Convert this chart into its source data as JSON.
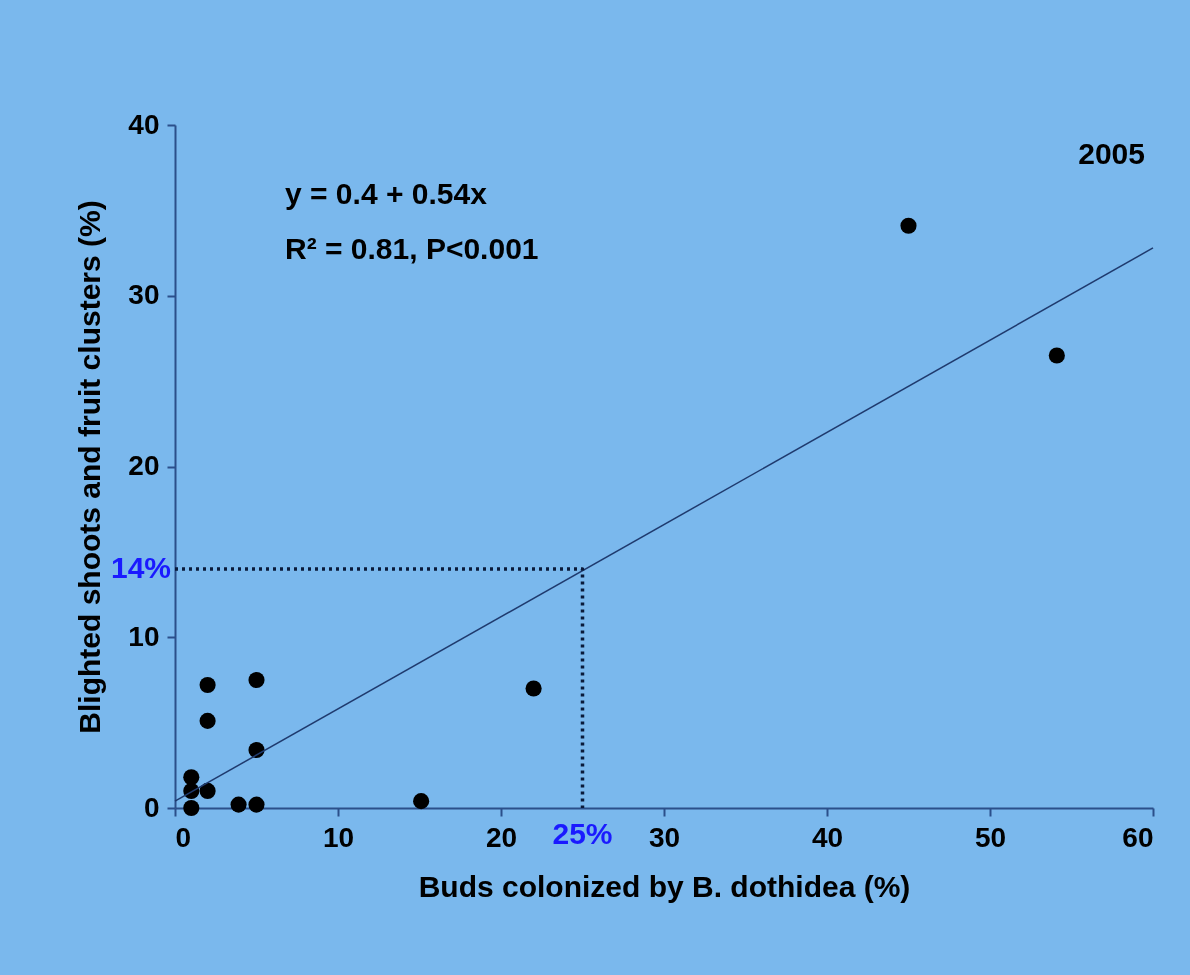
{
  "chart_data": {
    "type": "scatter",
    "xlabel": "Buds colonized by B. dothidea (%)",
    "ylabel": "Blighted shoots and fruit clusters (%)",
    "xlim": [
      0,
      60
    ],
    "xticks": [
      0,
      10,
      20,
      30,
      40,
      50,
      60
    ],
    "ylim": [
      0,
      40
    ],
    "yticks": [
      0,
      10,
      20,
      30,
      40
    ],
    "grid": false,
    "marker": "circle",
    "series": [
      {
        "color": "#000000",
        "x": [
          2,
          5,
          2,
          5,
          1,
          1,
          2,
          1,
          3.9,
          5,
          15.1,
          22,
          45,
          54.1
        ],
        "values": [
          7.2,
          7.5,
          5.1,
          3.4,
          1.8,
          1.0,
          1.0,
          0,
          0.2,
          0.2,
          0.4,
          7.0,
          34.1,
          26.5
        ]
      },
      {
        "type": "line",
        "color": "#1f3a6e",
        "line_style": "solid",
        "marker": "none",
        "x": [
          0,
          60
        ],
        "values": [
          0.4,
          32.8
        ]
      },
      {
        "type": "line",
        "color": "#0a1a3a",
        "line_style": "dotted",
        "marker": "none",
        "x": [
          0,
          25,
          25
        ],
        "values": [
          14,
          14,
          0
        ]
      }
    ],
    "annotations": [
      "2005",
      "y = 0.4 + 0.54x",
      "R² = 0.81, P<0.001",
      {
        "text": "14%",
        "x": 0,
        "y": 14
      },
      {
        "text": "25%",
        "x": 25,
        "y": 0
      }
    ]
  }
}
